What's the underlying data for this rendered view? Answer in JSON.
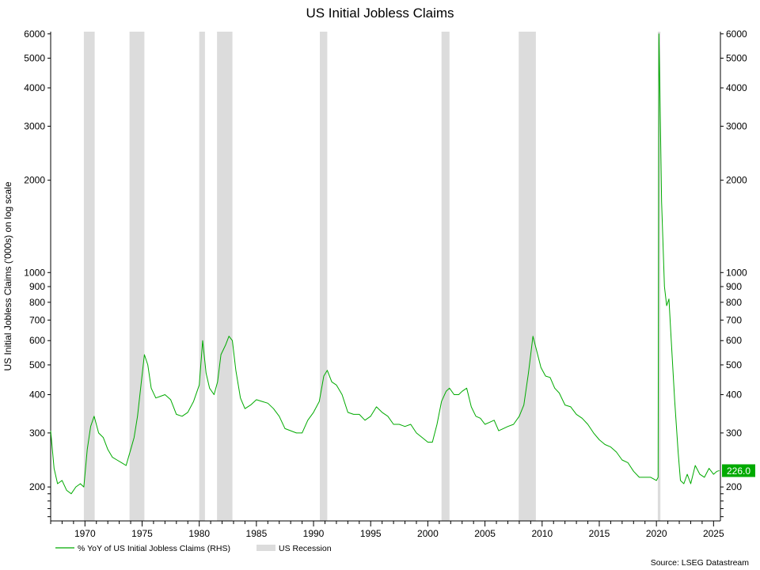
{
  "chart_data": {
    "type": "line",
    "title": "US Initial Jobless Claims",
    "ylabel": "US Initial Jobless Claims ('000s) on log scale",
    "xlabel": "",
    "y_scale": "log",
    "ylim": [
      155,
      6100
    ],
    "xlim": [
      1967.0,
      2025.6
    ],
    "x_ticks": [
      "1970",
      "1975",
      "1980",
      "1985",
      "1990",
      "1995",
      "2000",
      "2005",
      "2010",
      "2015",
      "2020",
      "2025"
    ],
    "y_ticks_left": [
      "6000",
      "5000",
      "4000",
      "3000",
      "2000",
      "1000",
      "900",
      "800",
      "700",
      "600",
      "500",
      "400",
      "300",
      "200"
    ],
    "y_ticks_right": [
      "6000",
      "5000",
      "4000",
      "3000",
      "2000",
      "1000",
      "900",
      "800",
      "700",
      "600",
      "500",
      "400",
      "300",
      "200"
    ],
    "grid": false,
    "legend_position": "bottom-left",
    "series": [
      {
        "name": "% YoY of US Initial Jobless Claims (RHS)",
        "color": "#00aa00",
        "points": [
          [
            1967.0,
            305
          ],
          [
            1967.3,
            230
          ],
          [
            1967.6,
            205
          ],
          [
            1968.0,
            210
          ],
          [
            1968.4,
            195
          ],
          [
            1968.8,
            190
          ],
          [
            1969.2,
            200
          ],
          [
            1969.6,
            205
          ],
          [
            1969.9,
            200
          ],
          [
            1970.2,
            265
          ],
          [
            1970.5,
            315
          ],
          [
            1970.8,
            340
          ],
          [
            1971.2,
            300
          ],
          [
            1971.6,
            290
          ],
          [
            1972.0,
            265
          ],
          [
            1972.4,
            250
          ],
          [
            1972.8,
            245
          ],
          [
            1973.2,
            240
          ],
          [
            1973.6,
            235
          ],
          [
            1974.0,
            265
          ],
          [
            1974.3,
            290
          ],
          [
            1974.6,
            340
          ],
          [
            1974.9,
            430
          ],
          [
            1975.2,
            540
          ],
          [
            1975.5,
            500
          ],
          [
            1975.8,
            420
          ],
          [
            1976.2,
            390
          ],
          [
            1976.6,
            395
          ],
          [
            1977.0,
            400
          ],
          [
            1977.5,
            385
          ],
          [
            1978.0,
            345
          ],
          [
            1978.5,
            340
          ],
          [
            1979.0,
            350
          ],
          [
            1979.5,
            380
          ],
          [
            1980.0,
            430
          ],
          [
            1980.3,
            600
          ],
          [
            1980.6,
            470
          ],
          [
            1980.9,
            420
          ],
          [
            1981.3,
            400
          ],
          [
            1981.6,
            440
          ],
          [
            1981.9,
            540
          ],
          [
            1982.3,
            580
          ],
          [
            1982.6,
            620
          ],
          [
            1982.9,
            600
          ],
          [
            1983.2,
            480
          ],
          [
            1983.6,
            390
          ],
          [
            1984.0,
            360
          ],
          [
            1984.5,
            370
          ],
          [
            1985.0,
            385
          ],
          [
            1985.5,
            380
          ],
          [
            1986.0,
            375
          ],
          [
            1986.5,
            360
          ],
          [
            1987.0,
            340
          ],
          [
            1987.5,
            310
          ],
          [
            1988.0,
            305
          ],
          [
            1988.5,
            300
          ],
          [
            1989.0,
            300
          ],
          [
            1989.5,
            330
          ],
          [
            1990.0,
            350
          ],
          [
            1990.5,
            380
          ],
          [
            1990.9,
            460
          ],
          [
            1991.2,
            480
          ],
          [
            1991.6,
            440
          ],
          [
            1992.0,
            430
          ],
          [
            1992.5,
            400
          ],
          [
            1993.0,
            350
          ],
          [
            1993.5,
            345
          ],
          [
            1994.0,
            345
          ],
          [
            1994.5,
            330
          ],
          [
            1995.0,
            340
          ],
          [
            1995.5,
            365
          ],
          [
            1996.0,
            350
          ],
          [
            1996.5,
            340
          ],
          [
            1997.0,
            320
          ],
          [
            1997.5,
            320
          ],
          [
            1998.0,
            315
          ],
          [
            1998.5,
            320
          ],
          [
            1999.0,
            300
          ],
          [
            1999.5,
            290
          ],
          [
            2000.0,
            280
          ],
          [
            2000.4,
            280
          ],
          [
            2000.8,
            320
          ],
          [
            2001.2,
            380
          ],
          [
            2001.6,
            410
          ],
          [
            2001.9,
            420
          ],
          [
            2002.3,
            400
          ],
          [
            2002.7,
            400
          ],
          [
            2003.0,
            410
          ],
          [
            2003.4,
            420
          ],
          [
            2003.8,
            365
          ],
          [
            2004.2,
            340
          ],
          [
            2004.6,
            335
          ],
          [
            2005.0,
            320
          ],
          [
            2005.4,
            325
          ],
          [
            2005.8,
            330
          ],
          [
            2006.2,
            305
          ],
          [
            2006.6,
            310
          ],
          [
            2007.0,
            315
          ],
          [
            2007.5,
            320
          ],
          [
            2008.0,
            340
          ],
          [
            2008.4,
            370
          ],
          [
            2008.8,
            470
          ],
          [
            2009.2,
            620
          ],
          [
            2009.5,
            560
          ],
          [
            2009.9,
            490
          ],
          [
            2010.3,
            460
          ],
          [
            2010.7,
            455
          ],
          [
            2011.1,
            420
          ],
          [
            2011.5,
            405
          ],
          [
            2012.0,
            370
          ],
          [
            2012.5,
            365
          ],
          [
            2013.0,
            345
          ],
          [
            2013.5,
            335
          ],
          [
            2014.0,
            320
          ],
          [
            2014.5,
            300
          ],
          [
            2015.0,
            285
          ],
          [
            2015.5,
            275
          ],
          [
            2016.0,
            270
          ],
          [
            2016.5,
            260
          ],
          [
            2017.0,
            245
          ],
          [
            2017.5,
            240
          ],
          [
            2018.0,
            225
          ],
          [
            2018.5,
            215
          ],
          [
            2019.0,
            215
          ],
          [
            2019.5,
            215
          ],
          [
            2020.0,
            210
          ],
          [
            2020.15,
            215
          ],
          [
            2020.22,
            6000
          ],
          [
            2020.3,
            4000
          ],
          [
            2020.45,
            1700
          ],
          [
            2020.7,
            900
          ],
          [
            2020.9,
            780
          ],
          [
            2021.1,
            820
          ],
          [
            2021.3,
            600
          ],
          [
            2021.6,
            380
          ],
          [
            2021.9,
            260
          ],
          [
            2022.1,
            210
          ],
          [
            2022.4,
            205
          ],
          [
            2022.7,
            220
          ],
          [
            2023.0,
            205
          ],
          [
            2023.4,
            235
          ],
          [
            2023.8,
            220
          ],
          [
            2024.2,
            215
          ],
          [
            2024.6,
            230
          ],
          [
            2025.0,
            220
          ],
          [
            2025.3,
            225
          ],
          [
            2025.5,
            226
          ]
        ]
      },
      {
        "name": "US Recession",
        "color": "#dcdcdc",
        "periods": [
          [
            1969.9,
            1970.85
          ],
          [
            1973.9,
            1975.2
          ],
          [
            1980.0,
            1980.5
          ],
          [
            1981.55,
            1982.9
          ],
          [
            1990.55,
            1991.2
          ],
          [
            2001.2,
            2001.9
          ],
          [
            2007.95,
            2009.45
          ],
          [
            2020.12,
            2020.35
          ]
        ]
      }
    ],
    "last_value": 226.0,
    "last_value_label": "226.0",
    "source": "Source: LSEG Datastream"
  }
}
